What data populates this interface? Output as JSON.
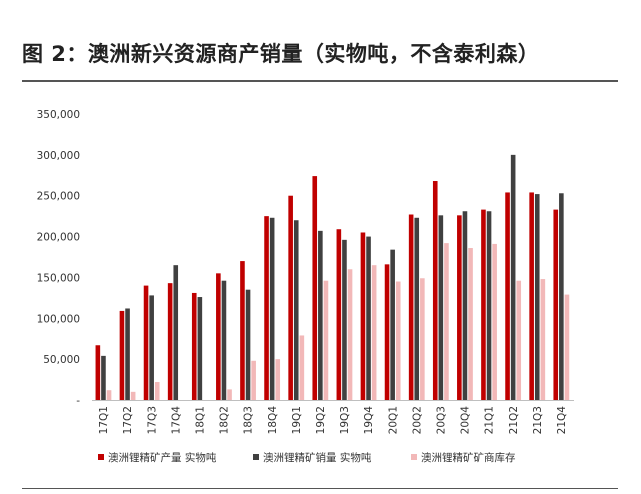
{
  "figure": {
    "title": "图 2：澳洲新兴资源商产销量（实物吨，不含泰利森）"
  },
  "colors": {
    "production": "#c00000",
    "sales": "#404040",
    "inventory": "#f2b8b8"
  },
  "chart_data": {
    "type": "bar",
    "title": "",
    "xlabel": "",
    "ylabel": "",
    "ylim": [
      0,
      350000
    ],
    "yticks": [
      0,
      50000,
      100000,
      150000,
      200000,
      250000,
      300000,
      350000
    ],
    "ytick_labels": [
      "-",
      "50,000",
      "100,000",
      "150,000",
      "200,000",
      "250,000",
      "300,000",
      "350,000"
    ],
    "grid": false,
    "legend_position": "bottom",
    "categories": [
      "17Q1",
      "17Q2",
      "17Q3",
      "17Q4",
      "18Q1",
      "18Q2",
      "18Q3",
      "18Q4",
      "19Q1",
      "19Q2",
      "19Q3",
      "19Q4",
      "20Q1",
      "20Q2",
      "20Q3",
      "20Q4",
      "21Q1",
      "21Q2",
      "21Q3",
      "21Q4"
    ],
    "series": [
      {
        "name": "澳洲锂精矿产量 实物吨",
        "values": [
          67000,
          109000,
          140000,
          143000,
          131000,
          155000,
          170000,
          225000,
          250000,
          274000,
          209000,
          205000,
          166000,
          227000,
          268000,
          226000,
          233000,
          254000,
          254000,
          233000
        ]
      },
      {
        "name": "澳洲锂精矿销量 实物吨",
        "values": [
          54000,
          112000,
          128000,
          165000,
          126000,
          146000,
          135000,
          223000,
          220000,
          207000,
          196000,
          200000,
          184000,
          223000,
          226000,
          231000,
          231000,
          300000,
          252000,
          253000
        ]
      },
      {
        "name": "澳洲锂精矿矿商库存",
        "values": [
          12000,
          10000,
          22000,
          0,
          0,
          13000,
          48000,
          50000,
          79000,
          146000,
          160000,
          165000,
          145000,
          149000,
          192000,
          186000,
          191000,
          146000,
          148000,
          129000
        ]
      }
    ]
  }
}
